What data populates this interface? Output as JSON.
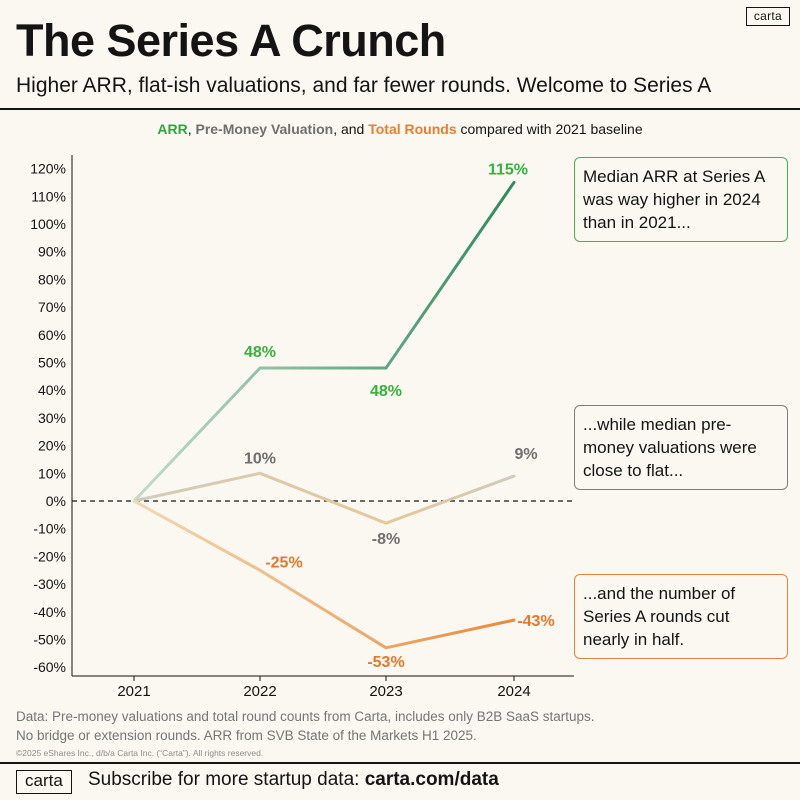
{
  "header": {
    "logo": "carta",
    "title": "The Series A Crunch",
    "subtitle": "Higher ARR, flat-ish valuations, and far fewer rounds. Welcome to Series A"
  },
  "caption": {
    "arr": "ARR",
    "sep1": ", ",
    "valuation": "Pre-Money Valuation",
    "sep2": ", and ",
    "rounds": "Total Rounds",
    "rest": " compared with 2021 baseline"
  },
  "chart_data": {
    "type": "line",
    "title": "",
    "xlabel": "",
    "ylabel": "",
    "categories": [
      "2021",
      "2022",
      "2023",
      "2024"
    ],
    "ylim": [
      -62,
      125
    ],
    "yticks": [
      120,
      110,
      100,
      90,
      80,
      70,
      60,
      50,
      40,
      30,
      20,
      10,
      0,
      -10,
      -20,
      -30,
      -40,
      -50,
      -60
    ],
    "y_tick_suffix": "%",
    "baseline": 0,
    "grid": false,
    "series": [
      {
        "name": "ARR",
        "values": [
          0,
          48,
          48,
          115
        ],
        "color_start": "#c3dccb",
        "color_end": "#2e8c5c",
        "label_color": "#35b13f",
        "labels": [
          "",
          "48%",
          "48%",
          "115%"
        ]
      },
      {
        "name": "Pre-Money Valuation",
        "values": [
          0,
          10,
          -8,
          9
        ],
        "color": "#cfcbbd",
        "color_alt": "#e4c998",
        "label_color": "#6f6f6f",
        "labels": [
          "",
          "10%",
          "-8%",
          "9%"
        ]
      },
      {
        "name": "Total Rounds",
        "values": [
          0,
          -25,
          -53,
          -43
        ],
        "color_start": "#f2d9b3",
        "color_end": "#ea8a3c",
        "label_color": "#e6782a",
        "labels": [
          "",
          "-25%",
          "-53%",
          "-43%"
        ]
      }
    ]
  },
  "notes": {
    "arr": "Median ARR at Series A was way higher in 2024 than in 2021...",
    "valuation": "...while median pre-money valuations were close to flat...",
    "rounds": "...and the number of Series A rounds cut nearly in half."
  },
  "source": {
    "line1": "Data: Pre-money valuations and total round counts from Carta, includes only B2B SaaS startups.",
    "line2": "No bridge or extension rounds. ARR from SVB State of the Markets H1 2025.",
    "copyright": "©2025 eShares Inc., d/b/a Carta Inc. (“Carta”). All rights reserved."
  },
  "footer": {
    "logo": "carta",
    "text": "Subscribe for more startup data: ",
    "link": "carta.com/data"
  }
}
